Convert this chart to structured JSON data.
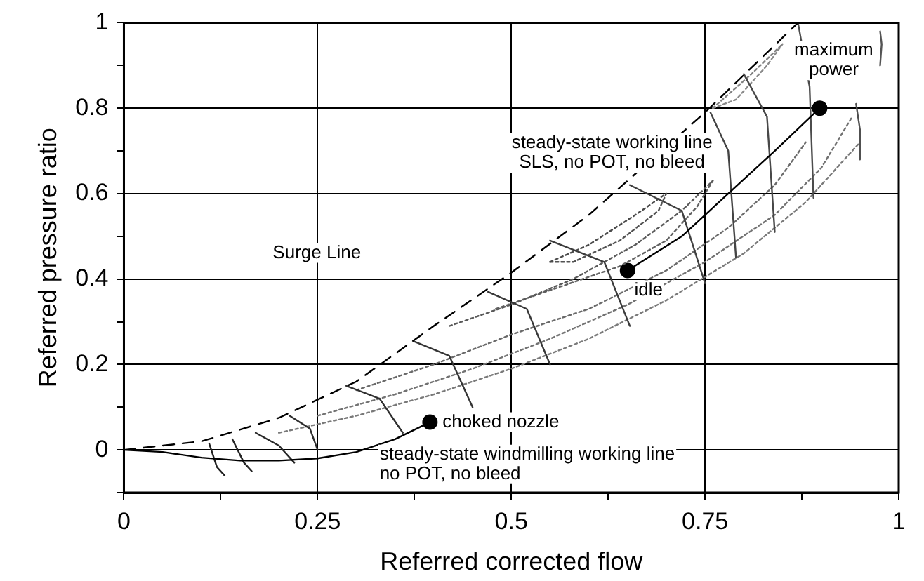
{
  "chart_data": {
    "type": "line",
    "xlabel": "Referred corrected flow",
    "ylabel": "Referred pressure ratio",
    "xlim": [
      0,
      1
    ],
    "ylim": [
      -0.1,
      1
    ],
    "xticks": [
      0,
      {
        "value": 0.125,
        "label": null
      },
      0.25,
      {
        "value": 0.375,
        "label": null
      },
      0.5,
      {
        "value": 0.625,
        "label": null
      },
      0.75,
      {
        "value": 0.875,
        "label": null
      },
      1
    ],
    "yticks": [
      {
        "value": -0.1,
        "label": null
      },
      0,
      {
        "value": 0.1,
        "label": null
      },
      0.2,
      {
        "value": 0.3,
        "label": null
      },
      0.4,
      {
        "value": 0.5,
        "label": null
      },
      0.6,
      {
        "value": 0.7,
        "label": null
      },
      0.8,
      {
        "value": 0.9,
        "label": null
      },
      1
    ],
    "grid": true,
    "legend": false,
    "marker": "none",
    "line_style": "solid",
    "series": [
      {
        "color": "#000000",
        "line_style": "dashed",
        "x": [
          0,
          0.1,
          0.2,
          0.3,
          0.4,
          0.5,
          0.6,
          0.75,
          0.87
        ],
        "values": [
          0,
          0.02,
          0.075,
          0.16,
          0.29,
          0.415,
          0.55,
          0.79,
          1.0
        ]
      },
      {
        "color": "#000000",
        "x": [
          0.65,
          0.72,
          0.78,
          0.84,
          0.898
        ],
        "values": [
          0.42,
          0.5,
          0.6,
          0.7,
          0.8
        ]
      },
      {
        "color": "#000000",
        "x": [
          0,
          0.05,
          0.1,
          0.15,
          0.2,
          0.25,
          0.3,
          0.35,
          0.395
        ],
        "values": [
          0,
          -0.005,
          -0.018,
          -0.025,
          -0.025,
          -0.02,
          -0.005,
          0.025,
          0.065
        ]
      },
      {
        "color": "#202020",
        "x": [
          0.11,
          0.12,
          0.13
        ],
        "values": [
          0.015,
          -0.04,
          -0.06
        ]
      },
      {
        "color": "#242424",
        "x": [
          0.14,
          0.155,
          0.165
        ],
        "values": [
          0.025,
          -0.03,
          -0.05
        ]
      },
      {
        "color": "#282828",
        "x": [
          0.17,
          0.2,
          0.22
        ],
        "values": [
          0.04,
          0.01,
          -0.03
        ]
      },
      {
        "color": "#2c2c2c",
        "x": [
          0.214,
          0.24,
          0.25
        ],
        "values": [
          0.08,
          0.05,
          0
        ]
      },
      {
        "color": "#303030",
        "x": [
          0.287,
          0.33,
          0.36
        ],
        "values": [
          0.15,
          0.12,
          0.04
        ]
      },
      {
        "color": "#343434",
        "x": [
          0.373,
          0.42,
          0.45
        ],
        "values": [
          0.255,
          0.22,
          0.1
        ]
      },
      {
        "color": "#383838",
        "x": [
          0.47,
          0.52,
          0.55
        ],
        "values": [
          0.37,
          0.33,
          0.2
        ]
      },
      {
        "color": "#3c3c3c",
        "x": [
          0.55,
          0.62,
          0.653
        ],
        "values": [
          0.49,
          0.44,
          0.29
        ]
      },
      {
        "color": "#404040",
        "x": [
          0.653,
          0.72,
          0.75
        ],
        "values": [
          0.62,
          0.56,
          0.39
        ]
      },
      {
        "color": "#444444",
        "x": [
          0.757,
          0.78,
          0.79
        ],
        "values": [
          0.79,
          0.7,
          0.45
        ]
      },
      {
        "color": "#484848",
        "x": [
          0.8,
          0.83,
          0.84
        ],
        "values": [
          0.88,
          0.78,
          0.51
        ]
      },
      {
        "color": "#4c4c4c",
        "x": [
          0.87,
          0.885,
          0.89
        ],
        "values": [
          1.0,
          0.85,
          0.59
        ]
      },
      {
        "color": "#505050",
        "x": [
          0.945,
          0.95,
          0.95
        ],
        "values": [
          0.81,
          0.75,
          0.68
        ]
      },
      {
        "color": "#545454",
        "x": [
          0.976,
          0.978,
          0.976
        ],
        "values": [
          0.98,
          0.95,
          0.9
        ]
      },
      {
        "color": "#4a4a4a",
        "line_style": "dotted",
        "x": [
          0.55,
          0.6,
          0.66,
          0.7
        ],
        "values": [
          0.44,
          0.48,
          0.55,
          0.6
        ]
      },
      {
        "color": "#525252",
        "line_style": "dotted",
        "x": [
          0.55,
          0.58,
          0.64,
          0.69,
          0.7
        ],
        "values": [
          0.44,
          0.44,
          0.49,
          0.56,
          0.6
        ]
      },
      {
        "color": "#5a5a5a",
        "line_style": "dotted",
        "x": [
          0.42,
          0.5,
          0.58,
          0.66,
          0.72,
          0.76
        ],
        "values": [
          0.29,
          0.34,
          0.4,
          0.48,
          0.56,
          0.63
        ]
      },
      {
        "color": "#626262",
        "line_style": "dotted",
        "x": [
          0.48,
          0.56,
          0.64,
          0.7,
          0.74,
          0.76
        ],
        "values": [
          0.33,
          0.38,
          0.43,
          0.49,
          0.57,
          0.63
        ]
      },
      {
        "color": "#6a6a6a",
        "line_style": "dotted",
        "x": [
          0.3,
          0.4,
          0.5,
          0.6,
          0.7,
          0.78,
          0.84,
          0.88
        ],
        "values": [
          0.14,
          0.2,
          0.27,
          0.33,
          0.42,
          0.52,
          0.62,
          0.72
        ]
      },
      {
        "color": "#727272",
        "line_style": "dotted",
        "x": [
          0.25,
          0.35,
          0.45,
          0.55,
          0.65,
          0.75,
          0.84,
          0.9,
          0.94
        ],
        "values": [
          0.08,
          0.13,
          0.19,
          0.26,
          0.34,
          0.44,
          0.55,
          0.66,
          0.78
        ]
      },
      {
        "color": "#7a7a7a",
        "line_style": "dotted",
        "x": [
          0.2,
          0.3,
          0.4,
          0.5,
          0.6,
          0.7,
          0.8,
          0.88,
          0.95
        ],
        "values": [
          0.04,
          0.08,
          0.13,
          0.19,
          0.26,
          0.35,
          0.46,
          0.58,
          0.72
        ]
      },
      {
        "color": "#828282",
        "line_style": "dotted",
        "x": [
          0.76,
          0.81,
          0.85
        ],
        "values": [
          0.8,
          0.88,
          0.95
        ]
      },
      {
        "color": "#8a8a8a",
        "line_style": "dotted",
        "x": [
          0.76,
          0.79,
          0.83,
          0.85
        ],
        "values": [
          0.8,
          0.82,
          0.9,
          0.95
        ]
      },
      {
        "type": "scatter",
        "marker": "circle",
        "color": "#000000",
        "x": [
          0.65,
          0.898,
          0.395
        ],
        "values": [
          0.42,
          0.8,
          0.065
        ]
      }
    ],
    "annotations": [
      {
        "text": "maximum\npower",
        "x": 0.898,
        "y": 0.8
      },
      {
        "text": "idle",
        "x": 0.65,
        "y": 0.42
      },
      {
        "text": "choked nozzle",
        "x": 0.395,
        "y": 0.065
      },
      "steady-state working line\nSLS, no POT, no bleed",
      "Surge Line",
      "steady-state windmilling working line\nno POT, no bleed"
    ]
  }
}
